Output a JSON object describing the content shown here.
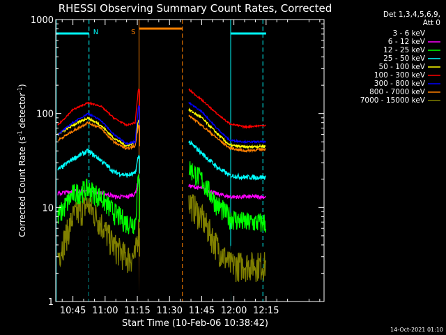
{
  "chart_data": {
    "type": "line",
    "title": "RHESSI Observing Summary Count Rates, Corrected",
    "xlabel": "Start Time (10-Feb-06 10:38:42)",
    "ylabel_main": "Corrected Count Rate (s",
    "ylabel_sup1": "-1",
    "ylabel_mid": " detector",
    "ylabel_sup2": "-1",
    "ylabel_end": ")",
    "yscale": "log",
    "ylim": [
      1,
      1000
    ],
    "xlim_minutes": [
      37,
      162
    ],
    "x_ticks": [
      {
        "t": 45,
        "label": "10:45"
      },
      {
        "t": 60,
        "label": "11:00"
      },
      {
        "t": 75,
        "label": "11:15"
      },
      {
        "t": 90,
        "label": "11:30"
      },
      {
        "t": 105,
        "label": "11:45"
      },
      {
        "t": 120,
        "label": "12:00"
      },
      {
        "t": 135,
        "label": "12:15"
      }
    ],
    "y_ticks": [
      {
        "v": 1,
        "label": "1"
      },
      {
        "v": 10,
        "label": "10"
      },
      {
        "v": 100,
        "label": "100"
      },
      {
        "v": 1000,
        "label": "1000"
      }
    ],
    "legend_header": [
      "Det 1,3,4,5,6,9,",
      "Att 0"
    ],
    "legend_position": "right",
    "annotation_date": "14-Oct-2021 01:10",
    "flags": [
      {
        "label": "N",
        "color": "#00ffff",
        "start": 37,
        "end": 52.5
      },
      {
        "label": "S",
        "color": "#ff8000",
        "start": 76,
        "end": 96
      }
    ],
    "vlines": [
      {
        "t": 37.2,
        "color": "#00ffff",
        "dash": false
      },
      {
        "t": 52.5,
        "color": "#00ffff",
        "dash": true
      },
      {
        "t": 75.8,
        "color": "#ff8000",
        "dash": false
      },
      {
        "t": 96,
        "color": "#ff8000",
        "dash": true
      },
      {
        "t": 118.5,
        "color": "#00ffff",
        "dash": false
      },
      {
        "t": 133.5,
        "color": "#00ffff",
        "dash": true
      }
    ],
    "series": [
      {
        "name": "3 - 6 keV",
        "color": "#ffffff",
        "noise": 0.06,
        "points": [
          [
            37,
            0
          ],
          [
            39,
            0
          ],
          [
            60,
            0
          ],
          [
            75,
            0
          ],
          [
            76,
            0
          ],
          [
            100,
            0
          ],
          [
            160,
            0
          ]
        ],
        "gapsOnly": true
      },
      {
        "name": "6 - 12 keV",
        "color": "#ff00ff",
        "noise": 0.05,
        "points": [
          [
            38,
            14
          ],
          [
            45,
            15
          ],
          [
            52,
            15
          ],
          [
            60,
            14
          ],
          [
            65,
            13
          ],
          [
            70,
            13
          ],
          [
            74,
            14
          ],
          [
            75.5,
            20
          ],
          [
            99,
            17
          ],
          [
            105,
            16
          ],
          [
            112,
            14
          ],
          [
            118,
            13
          ],
          [
            125,
            13
          ],
          [
            135,
            13
          ]
        ]
      },
      {
        "name": "12 - 25 keV",
        "color": "#00ff00",
        "noise": 0.09,
        "points": [
          [
            38,
            8
          ],
          [
            45,
            14
          ],
          [
            52,
            16
          ],
          [
            58,
            13
          ],
          [
            64,
            9
          ],
          [
            70,
            7
          ],
          [
            74,
            7
          ],
          [
            75.5,
            20
          ],
          [
            99,
            27
          ],
          [
            105,
            20
          ],
          [
            112,
            11
          ],
          [
            118,
            8
          ],
          [
            125,
            7
          ],
          [
            135,
            7
          ]
        ]
      },
      {
        "name": "25 - 50 keV",
        "color": "#00ffff",
        "noise": 0.06,
        "points": [
          [
            38,
            25
          ],
          [
            45,
            33
          ],
          [
            52,
            40
          ],
          [
            58,
            32
          ],
          [
            64,
            24
          ],
          [
            70,
            22
          ],
          [
            74,
            23
          ],
          [
            75.5,
            35
          ],
          [
            99,
            50
          ],
          [
            105,
            38
          ],
          [
            112,
            27
          ],
          [
            118,
            22
          ],
          [
            125,
            21
          ],
          [
            135,
            21
          ]
        ]
      },
      {
        "name": "50 - 100 keV",
        "color": "#ffff00",
        "noise": 0.03,
        "points": [
          [
            38,
            60
          ],
          [
            45,
            75
          ],
          [
            52,
            90
          ],
          [
            58,
            75
          ],
          [
            64,
            55
          ],
          [
            70,
            45
          ],
          [
            74,
            50
          ],
          [
            75.5,
            85
          ],
          [
            99,
            110
          ],
          [
            105,
            90
          ],
          [
            112,
            62
          ],
          [
            118,
            46
          ],
          [
            125,
            44
          ],
          [
            135,
            45
          ]
        ]
      },
      {
        "name": "100 - 300 keV",
        "color": "#ff0000",
        "noise": 0.02,
        "points": [
          [
            38,
            75
          ],
          [
            45,
            110
          ],
          [
            52,
            130
          ],
          [
            58,
            120
          ],
          [
            64,
            90
          ],
          [
            70,
            75
          ],
          [
            74,
            80
          ],
          [
            75.5,
            180
          ],
          [
            99,
            180
          ],
          [
            105,
            140
          ],
          [
            112,
            100
          ],
          [
            118,
            78
          ],
          [
            125,
            72
          ],
          [
            135,
            75
          ]
        ]
      },
      {
        "name": "300 - 800 keV",
        "color": "#0000ff",
        "noise": 0.02,
        "points": [
          [
            38,
            60
          ],
          [
            45,
            80
          ],
          [
            52,
            100
          ],
          [
            58,
            85
          ],
          [
            64,
            60
          ],
          [
            70,
            48
          ],
          [
            74,
            50
          ],
          [
            75.5,
            120
          ],
          [
            99,
            130
          ],
          [
            105,
            105
          ],
          [
            112,
            70
          ],
          [
            118,
            52
          ],
          [
            125,
            50
          ],
          [
            135,
            50
          ]
        ]
      },
      {
        "name": "800 - 7000 keV",
        "color": "#ff8000",
        "noise": 0.03,
        "points": [
          [
            38,
            52
          ],
          [
            45,
            65
          ],
          [
            52,
            80
          ],
          [
            58,
            70
          ],
          [
            64,
            50
          ],
          [
            70,
            42
          ],
          [
            74,
            45
          ],
          [
            75.5,
            75
          ],
          [
            99,
            95
          ],
          [
            105,
            75
          ],
          [
            112,
            55
          ],
          [
            118,
            43
          ],
          [
            125,
            40
          ],
          [
            135,
            42
          ]
        ]
      },
      {
        "name": "7000 - 15000 keV",
        "color": "#808000",
        "noise": 0.12,
        "points": [
          [
            38,
            3
          ],
          [
            45,
            8
          ],
          [
            52,
            11
          ],
          [
            58,
            7
          ],
          [
            64,
            4
          ],
          [
            70,
            3
          ],
          [
            74,
            3
          ],
          [
            75.5,
            6
          ],
          [
            99,
            12
          ],
          [
            105,
            8
          ],
          [
            112,
            4
          ],
          [
            118,
            2.5
          ],
          [
            125,
            2.5
          ],
          [
            135,
            2.5
          ]
        ]
      }
    ],
    "black_band": [
      [
        38,
        2
      ],
      [
        45,
        6
      ],
      [
        52,
        9
      ],
      [
        58,
        5
      ],
      [
        64,
        3
      ],
      [
        70,
        1.5
      ],
      [
        74,
        1.2
      ],
      [
        99,
        10
      ],
      [
        105,
        6
      ],
      [
        112,
        3
      ],
      [
        118,
        1.8
      ],
      [
        125,
        1.6
      ],
      [
        135,
        1.6
      ]
    ],
    "data_gap": [
      76,
      99
    ]
  }
}
